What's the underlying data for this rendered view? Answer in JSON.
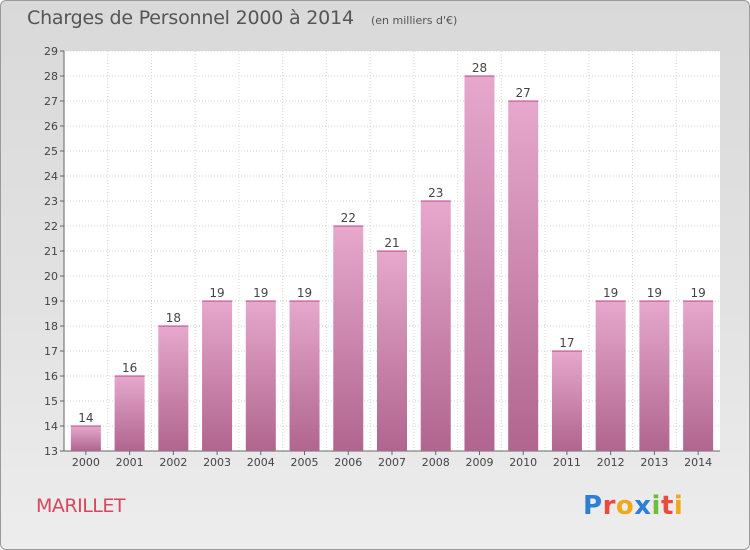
{
  "header": {
    "title": "Charges de Personnel 2000 à 2014",
    "subtitle": "(en milliers d'€)"
  },
  "footer": {
    "commune": "MARILLET",
    "logo_text": "Proxiti"
  },
  "colors": {
    "bar_top": "#e6a8cc",
    "bar_bottom": "#b0658f",
    "commune_text": "#d9455f"
  },
  "chart_data": {
    "type": "bar",
    "categories": [
      "2000",
      "2001",
      "2002",
      "2003",
      "2004",
      "2005",
      "2006",
      "2007",
      "2008",
      "2009",
      "2010",
      "2011",
      "2012",
      "2013",
      "2014"
    ],
    "values": [
      14,
      16,
      18,
      19,
      19,
      19,
      22,
      21,
      23,
      28,
      27,
      17,
      19,
      19,
      19
    ],
    "title": "Charges de Personnel 2000 à 2014",
    "subtitle": "(en milliers d'€)",
    "xlabel": "",
    "ylabel": "",
    "ylim": [
      13,
      29
    ],
    "yticks": [
      13,
      14,
      15,
      16,
      17,
      18,
      19,
      20,
      21,
      22,
      23,
      24,
      25,
      26,
      27,
      28,
      29
    ],
    "grid": true,
    "data_labels": true
  }
}
